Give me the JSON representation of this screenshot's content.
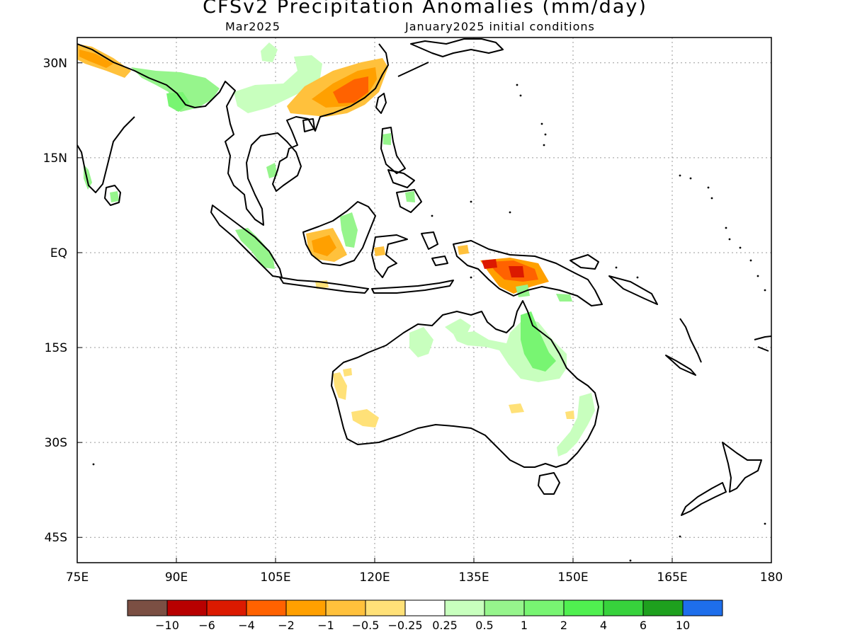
{
  "title": "CFSv2 Precipitation Anomalies (mm/day)",
  "subtitle_left": "Mar2025",
  "subtitle_right": "January2025 initial conditions",
  "map": {
    "projection": "lat-lon",
    "lon_range": [
      75,
      180
    ],
    "lat_range": [
      -49,
      34
    ],
    "x_ticks": [
      {
        "value": 75,
        "label": "75E"
      },
      {
        "value": 90,
        "label": "90E"
      },
      {
        "value": 105,
        "label": "105E"
      },
      {
        "value": 120,
        "label": "120E"
      },
      {
        "value": 135,
        "label": "135E"
      },
      {
        "value": 150,
        "label": "150E"
      },
      {
        "value": 165,
        "label": "165E"
      },
      {
        "value": 180,
        "label": "180"
      }
    ],
    "y_ticks": [
      {
        "value": 30,
        "label": "30N"
      },
      {
        "value": 15,
        "label": "15N"
      },
      {
        "value": 0,
        "label": "EQ"
      },
      {
        "value": -15,
        "label": "15S"
      },
      {
        "value": -30,
        "label": "30S"
      },
      {
        "value": -45,
        "label": "45S"
      }
    ],
    "grid": "dotted"
  },
  "colorbar": {
    "colors": [
      "#7b4f43",
      "#b80000",
      "#dc1a00",
      "#ff6200",
      "#ffa000",
      "#ffc13c",
      "#ffe178",
      "#ffffff",
      "#c8ffbe",
      "#96f58c",
      "#78f572",
      "#50f050",
      "#37d23c",
      "#1ea01e",
      "#1e6eeb"
    ],
    "labels": [
      "−10",
      "−6",
      "−4",
      "−2",
      "−1",
      "−0.5",
      "−0.25",
      "0.25",
      "0.5",
      "1",
      "2",
      "4",
      "6",
      "10"
    ]
  }
}
